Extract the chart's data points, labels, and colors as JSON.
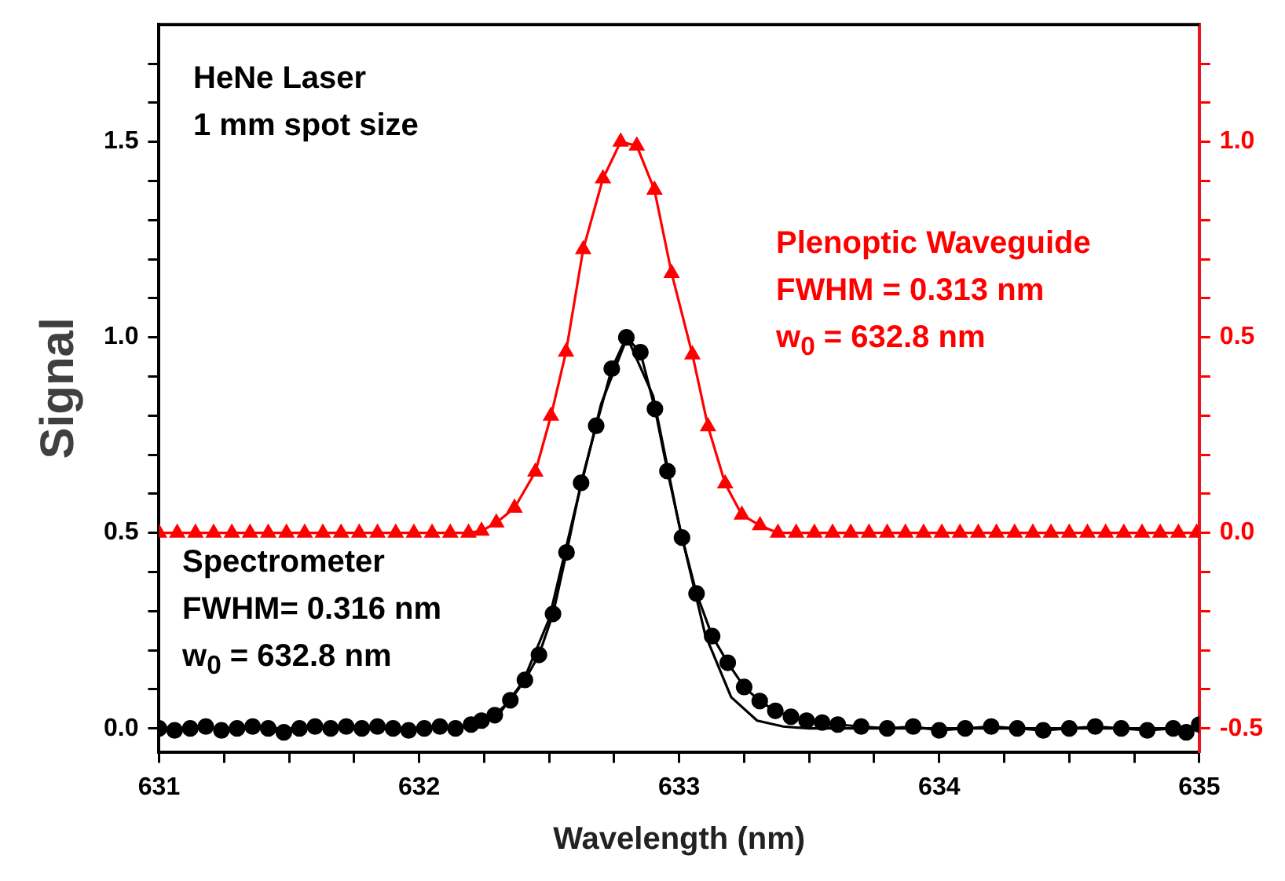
{
  "chart_data": {
    "type": "line",
    "xlabel": "Wavelength (nm)",
    "ylabel": "Signal",
    "xlim": [
      631,
      635
    ],
    "ylim": [
      -0.06,
      1.8
    ],
    "y2lim": [
      -0.56,
      1.3
    ],
    "xticks": [
      631,
      {
        "value": 631.25,
        "label": null
      },
      {
        "value": 631.5,
        "label": null
      },
      {
        "value": 631.75,
        "label": null
      },
      632,
      {
        "value": 632.25,
        "label": null
      },
      {
        "value": 632.5,
        "label": null
      },
      {
        "value": 632.75,
        "label": null
      },
      633,
      {
        "value": 633.25,
        "label": null
      },
      {
        "value": 633.5,
        "label": null
      },
      {
        "value": 633.75,
        "label": null
      },
      634,
      {
        "value": 634.25,
        "label": null
      },
      {
        "value": 634.5,
        "label": null
      },
      {
        "value": 634.75,
        "label": null
      },
      635
    ],
    "yticks": [
      {
        "value": 0,
        "label": "0.0"
      },
      {
        "value": 0.1,
        "label": null
      },
      {
        "value": 0.2,
        "label": null
      },
      {
        "value": 0.3,
        "label": null
      },
      {
        "value": 0.4,
        "label": null
      },
      0.5,
      {
        "value": 0.6,
        "label": null
      },
      {
        "value": 0.7,
        "label": null
      },
      {
        "value": 0.8,
        "label": null
      },
      {
        "value": 0.9,
        "label": null
      },
      {
        "value": 1,
        "label": "1.0"
      },
      {
        "value": 1.1,
        "label": null
      },
      {
        "value": 1.2,
        "label": null
      },
      {
        "value": 1.3,
        "label": null
      },
      {
        "value": 1.4,
        "label": null
      },
      1.5,
      {
        "value": 1.6,
        "label": null
      },
      {
        "value": 1.7,
        "label": null
      }
    ],
    "y2ticks": [
      -0.5,
      {
        "value": -0.4,
        "label": null
      },
      {
        "value": -0.3,
        "label": null
      },
      {
        "value": -0.2,
        "label": null
      },
      {
        "value": -0.1,
        "label": null
      },
      {
        "value": 0,
        "label": "0.0"
      },
      {
        "value": 0.1,
        "label": null
      },
      {
        "value": 0.2,
        "label": null
      },
      {
        "value": 0.3,
        "label": null
      },
      {
        "value": 0.4,
        "label": null
      },
      0.5,
      {
        "value": 0.6,
        "label": null
      },
      {
        "value": 0.7,
        "label": null
      },
      {
        "value": 0.8,
        "label": null
      },
      {
        "value": 0.9,
        "label": null
      },
      {
        "value": 1,
        "label": "1.0"
      },
      {
        "value": 1.1,
        "label": null
      },
      {
        "value": 1.2,
        "label": null
      }
    ],
    "grid": false,
    "legend": false,
    "annotations": [
      "HeNe Laser",
      "1 mm spot size",
      "FWHM = 0.313 nm",
      "w$_{0}$ = 632.8 nm",
      "FWHM= 0.316 nm",
      "w$_{0}$ = 632.8 nm"
    ],
    "series": [
      {
        "name": "Spectrometer",
        "color": "#000000",
        "marker": "circle",
        "x": [
          631.0,
          631.06,
          631.12,
          631.18,
          631.24,
          631.3,
          631.36,
          631.42,
          631.48,
          631.54,
          631.6,
          631.66,
          631.72,
          631.78,
          631.84,
          631.9,
          631.96,
          632.02,
          632.08,
          632.14,
          632.2,
          632.24,
          632.291,
          632.351,
          632.407,
          632.461,
          632.515,
          632.567,
          632.623,
          632.681,
          632.741,
          632.797,
          632.851,
          632.907,
          632.955,
          633.011,
          633.067,
          633.127,
          633.187,
          633.25,
          633.31,
          633.37,
          633.43,
          633.49,
          633.55,
          633.61,
          633.7,
          633.8,
          633.9,
          634.0,
          634.1,
          634.2,
          634.3,
          634.4,
          634.5,
          634.6,
          634.7,
          634.8,
          634.9,
          634.95,
          635.0
        ],
        "values": [
          0.0,
          -0.005,
          0.0,
          0.005,
          -0.005,
          0.0,
          0.005,
          0.0,
          -0.01,
          0.0,
          0.005,
          0.0,
          0.005,
          0.0,
          0.005,
          0.0,
          -0.005,
          0.0,
          0.005,
          0.0,
          0.01,
          0.02,
          0.034,
          0.072,
          0.124,
          0.188,
          0.293,
          0.45,
          0.628,
          0.774,
          0.92,
          1.0,
          0.962,
          0.817,
          0.658,
          0.488,
          0.345,
          0.236,
          0.168,
          0.106,
          0.07,
          0.045,
          0.03,
          0.02,
          0.015,
          0.01,
          0.005,
          0.0,
          0.005,
          -0.005,
          0.0,
          0.005,
          0.0,
          -0.005,
          0.0,
          0.005,
          0.0,
          -0.005,
          0.0,
          -0.01,
          0.01
        ]
      },
      {
        "color": "#000000",
        "marker": "none",
        "x": [
          631.0,
          632.0,
          632.2,
          632.3,
          632.4,
          632.5,
          632.6,
          632.7,
          632.8,
          632.9,
          633.0,
          633.1,
          633.2,
          633.3,
          633.4,
          633.5,
          634.0,
          635.0
        ],
        "values": [
          0.0,
          0.0,
          0.005,
          0.03,
          0.12,
          0.28,
          0.56,
          0.83,
          1.0,
          0.85,
          0.52,
          0.24,
          0.08,
          0.02,
          0.005,
          0.0,
          0.0,
          0.0
        ]
      },
      {
        "name": "Plenoptic Waveguide",
        "color": "#ff0000",
        "marker": "triangle",
        "axis": "y2",
        "x": [
          631.0,
          631.07,
          631.14,
          631.21,
          631.28,
          631.35,
          631.42,
          631.49,
          631.56,
          631.63,
          631.7,
          631.77,
          631.84,
          631.91,
          631.98,
          632.05,
          632.12,
          632.19,
          632.24,
          632.297,
          632.367,
          632.447,
          632.507,
          632.565,
          632.631,
          632.707,
          632.775,
          632.837,
          632.905,
          632.971,
          633.051,
          633.111,
          633.177,
          633.241,
          633.311,
          633.38,
          633.45,
          633.52,
          633.59,
          633.66,
          633.73,
          633.8,
          633.87,
          633.94,
          634.01,
          634.08,
          634.15,
          634.22,
          634.29,
          634.36,
          634.43,
          634.5,
          634.57,
          634.64,
          634.71,
          634.78,
          634.85,
          634.92,
          634.99
        ],
        "values": [
          0,
          0,
          0,
          0,
          0,
          0,
          0,
          0,
          0,
          0,
          0,
          0,
          0,
          0,
          0,
          0,
          0,
          0,
          0.005,
          0.026,
          0.064,
          0.156,
          0.299,
          0.463,
          0.725,
          0.906,
          1.0,
          0.99,
          0.877,
          0.664,
          0.456,
          0.272,
          0.126,
          0.046,
          0.019,
          0,
          0,
          0,
          0,
          0,
          0,
          0,
          0,
          0,
          0,
          0,
          0,
          0,
          0,
          0,
          0,
          0,
          0,
          0,
          0,
          0,
          0,
          0,
          0
        ]
      }
    ]
  }
}
